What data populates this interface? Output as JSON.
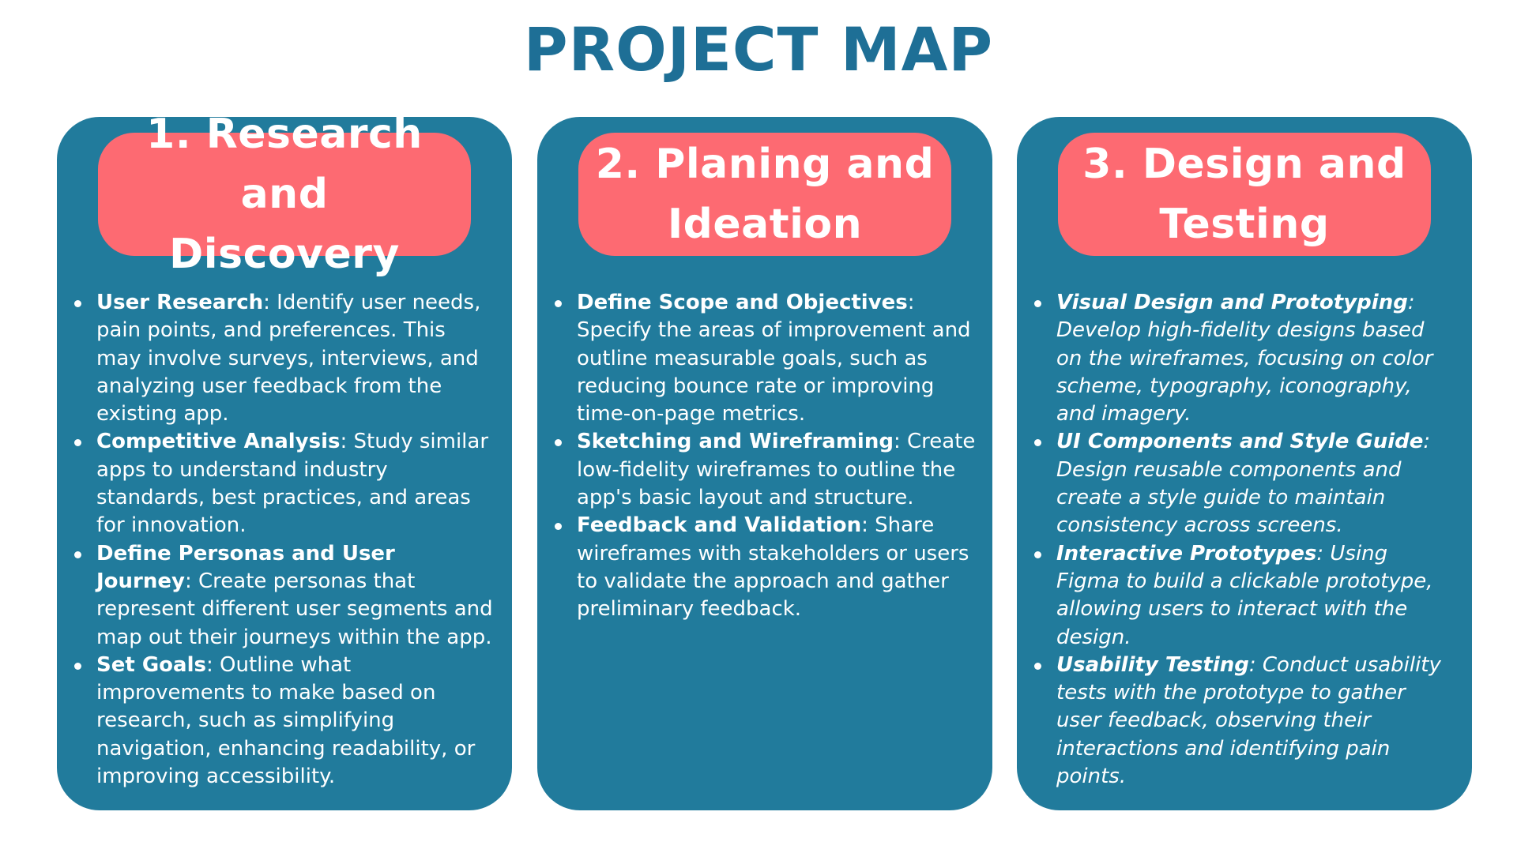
{
  "title": "PROJECT MAP",
  "columns": [
    {
      "heading": "1. Research and\nDiscovery",
      "items": [
        {
          "term": "User Research",
          "text": ": Identify user needs, pain points, and preferences. This may involve surveys, interviews, and analyzing user feedback from the existing app."
        },
        {
          "term": "Competitive Analysis",
          "text": ": Study similar apps to understand industry standards, best practices, and areas for innovation."
        },
        {
          "term": "Define Personas and User Journey",
          "text": ": Create personas that represent different user segments and map out their journeys within the app."
        },
        {
          "term": "Set Goals",
          "text": ": Outline what improvements to make based on research, such as simplifying navigation, enhancing readability, or improving accessibility."
        }
      ]
    },
    {
      "heading": "2. Planing and\nIdeation",
      "items": [
        {
          "term": "Define Scope and Objectives",
          "text": ": Specify the areas of improvement and outline measurable goals, such as reducing bounce rate or improving time-on-page metrics."
        },
        {
          "term": "Sketching and Wireframing",
          "text": ": Create low-fidelity wireframes to outline the app's basic layout and structure."
        },
        {
          "term": "Feedback and Validation",
          "text": ": Share wireframes with stakeholders or users to validate the approach and gather preliminary feedback."
        }
      ]
    },
    {
      "heading": "3. Design and\nTesting",
      "items": [
        {
          "term": "Visual Design and Prototyping",
          "text": ": Develop high-fidelity designs based on the wireframes, focusing on color scheme, typography, iconography, and imagery."
        },
        {
          "term": "UI Components and Style Guide",
          "text": ": Design reusable components and create a style guide to maintain consistency across screens."
        },
        {
          "term": "Interactive Prototypes",
          "text": ": Using Figma to build a clickable prototype, allowing users to interact with the design."
        },
        {
          "term": "Usability Testing",
          "text": ": Conduct usability tests with the prototype to gather user feedback, observing their interactions and identifying pain points."
        }
      ]
    }
  ],
  "colors": {
    "title": "#1e6f96",
    "card": "#217b9c",
    "pill": "#fd6a72",
    "text": "#ffffff"
  }
}
